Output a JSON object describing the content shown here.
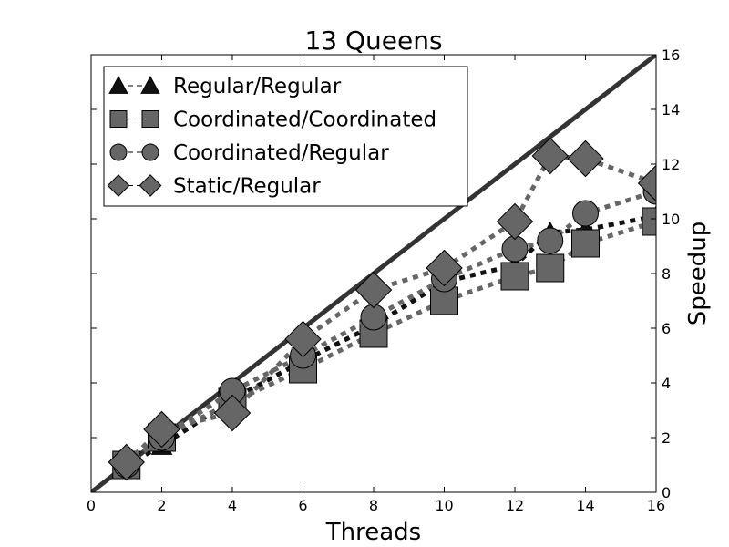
{
  "chart_data": {
    "type": "line",
    "title": "13 Queens",
    "xlabel": "Threads",
    "ylabel": "Speedup",
    "xlim": [
      0,
      16
    ],
    "ylim": [
      0,
      16
    ],
    "x_ticks": [
      0,
      2,
      4,
      6,
      8,
      10,
      12,
      14,
      16
    ],
    "y_ticks": [
      0,
      2,
      4,
      6,
      8,
      10,
      12,
      14,
      16
    ],
    "y_axis_side": "right",
    "grid": false,
    "legend_position": "top-left",
    "ideal_line": {
      "x": [
        0,
        16
      ],
      "y": [
        0,
        16
      ],
      "color": "#333333"
    },
    "series": [
      {
        "name": "Regular/Regular",
        "marker": "triangle",
        "color": "#111111",
        "x": [
          1,
          2,
          4,
          6,
          8,
          10,
          12,
          13,
          14,
          16
        ],
        "y": [
          1.0,
          1.7,
          3.4,
          4.8,
          6.1,
          7.7,
          8.3,
          9.5,
          9.6,
          10.1
        ]
      },
      {
        "name": "Coordinated/Coordinated",
        "marker": "square",
        "color": "#666666",
        "x": [
          1,
          2,
          4,
          6,
          8,
          10,
          12,
          13,
          14,
          16
        ],
        "y": [
          1.0,
          2.0,
          3.3,
          4.5,
          5.8,
          7.0,
          7.9,
          8.2,
          9.1,
          9.9
        ]
      },
      {
        "name": "Coordinated/Regular",
        "marker": "circle",
        "color": "#666666",
        "x": [
          1,
          2,
          4,
          6,
          8,
          10,
          12,
          13,
          14,
          16
        ],
        "y": [
          1.0,
          2.0,
          3.7,
          5.0,
          6.4,
          7.8,
          8.9,
          9.2,
          10.2,
          11.0
        ]
      },
      {
        "name": "Static/Regular",
        "marker": "diamond",
        "color": "#666666",
        "x": [
          1,
          2,
          4,
          6,
          8,
          10,
          12,
          13,
          14,
          16
        ],
        "y": [
          1.1,
          2.3,
          2.9,
          5.6,
          7.4,
          8.2,
          9.9,
          12.3,
          12.2,
          11.3
        ]
      }
    ]
  }
}
